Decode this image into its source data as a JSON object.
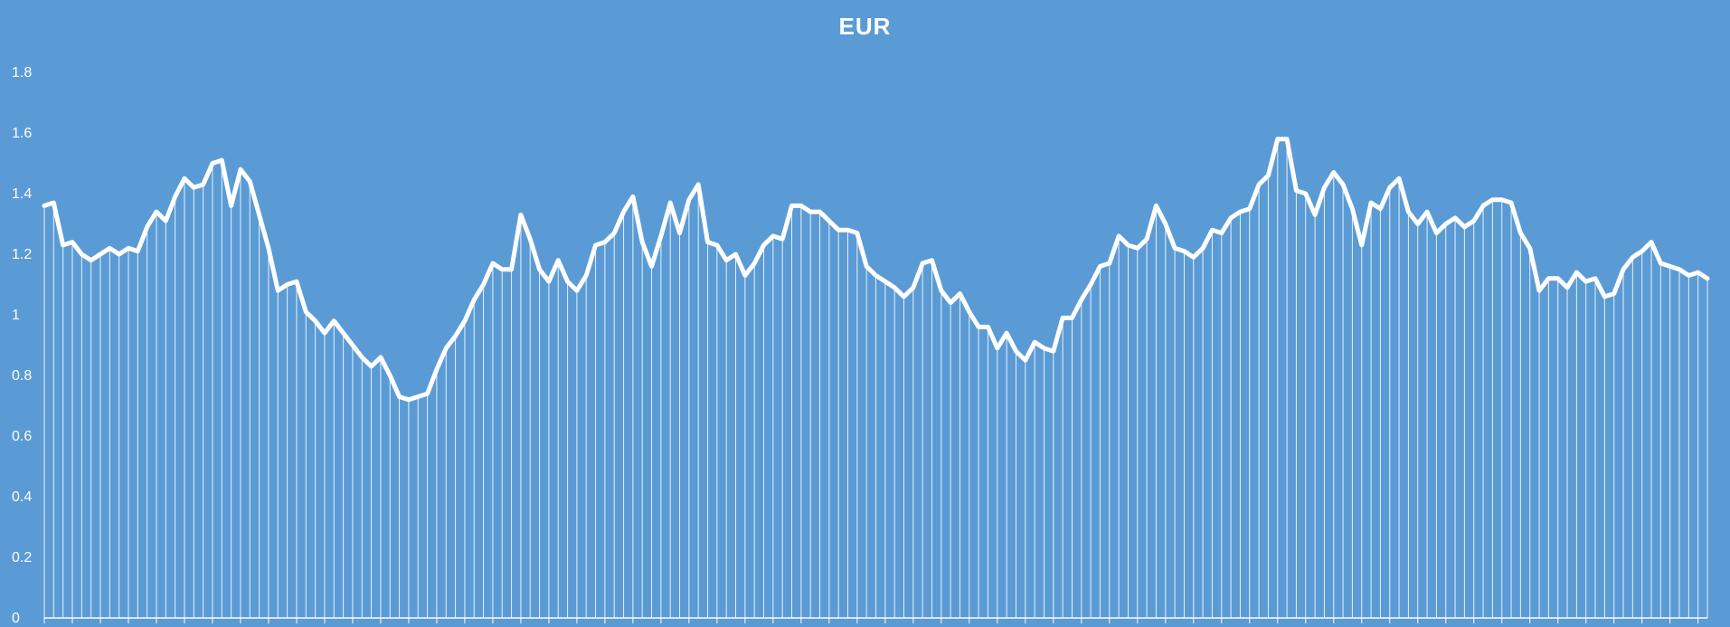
{
  "colors": {
    "background": "#5b9bd5",
    "line": "#ffffff",
    "drop_lines": "#ffffff",
    "axis": "#ffffff"
  },
  "chart_data": {
    "type": "line",
    "title": "EUR",
    "xlabel": "",
    "ylabel": "",
    "ylim": [
      0,
      1.8
    ],
    "yticks": [
      0,
      0.2,
      0.4,
      0.6,
      0.8,
      1,
      1.2,
      1.4,
      1.6,
      1.8
    ],
    "ytick_labels": [
      "0",
      "0.2",
      "0.4",
      "0.6",
      "0.8",
      "1",
      "1.2",
      "1.4",
      "1.6",
      "1.8"
    ],
    "xtick_labels_shown": false,
    "grid": false,
    "drop_lines": true,
    "legend": "none",
    "series": [
      {
        "values": [
          1.36,
          1.37,
          1.23,
          1.24,
          1.2,
          1.18,
          1.2,
          1.22,
          1.2,
          1.22,
          1.21,
          1.29,
          1.34,
          1.31,
          1.39,
          1.45,
          1.42,
          1.43,
          1.5,
          1.51,
          1.36,
          1.48,
          1.44,
          1.33,
          1.22,
          1.08,
          1.1,
          1.11,
          1.01,
          0.98,
          0.94,
          0.98,
          0.94,
          0.9,
          0.86,
          0.83,
          0.86,
          0.8,
          0.73,
          0.72,
          0.73,
          0.74,
          0.82,
          0.89,
          0.93,
          0.98,
          1.05,
          1.1,
          1.17,
          1.15,
          1.15,
          1.33,
          1.25,
          1.15,
          1.11,
          1.18,
          1.11,
          1.08,
          1.13,
          1.23,
          1.24,
          1.27,
          1.34,
          1.39,
          1.24,
          1.16,
          1.26,
          1.37,
          1.27,
          1.38,
          1.43,
          1.24,
          1.23,
          1.18,
          1.2,
          1.13,
          1.17,
          1.23,
          1.26,
          1.25,
          1.36,
          1.36,
          1.34,
          1.34,
          1.31,
          1.28,
          1.28,
          1.27,
          1.16,
          1.13,
          1.11,
          1.09,
          1.06,
          1.09,
          1.17,
          1.18,
          1.08,
          1.04,
          1.07,
          1.01,
          0.96,
          0.96,
          0.89,
          0.94,
          0.88,
          0.85,
          0.91,
          0.89,
          0.88,
          0.99,
          0.99,
          1.05,
          1.1,
          1.16,
          1.17,
          1.26,
          1.23,
          1.22,
          1.25,
          1.36,
          1.3,
          1.22,
          1.21,
          1.19,
          1.22,
          1.28,
          1.27,
          1.32,
          1.34,
          1.35,
          1.43,
          1.46,
          1.58,
          1.58,
          1.41,
          1.4,
          1.33,
          1.42,
          1.47,
          1.43,
          1.35,
          1.23,
          1.37,
          1.35,
          1.42,
          1.45,
          1.34,
          1.3,
          1.34,
          1.27,
          1.3,
          1.32,
          1.29,
          1.31,
          1.36,
          1.38,
          1.38,
          1.37,
          1.27,
          1.22,
          1.08,
          1.12,
          1.12,
          1.09,
          1.14,
          1.11,
          1.12,
          1.06,
          1.07,
          1.15,
          1.19,
          1.21,
          1.24,
          1.17,
          1.16,
          1.15,
          1.13,
          1.14,
          1.12
        ]
      }
    ]
  }
}
